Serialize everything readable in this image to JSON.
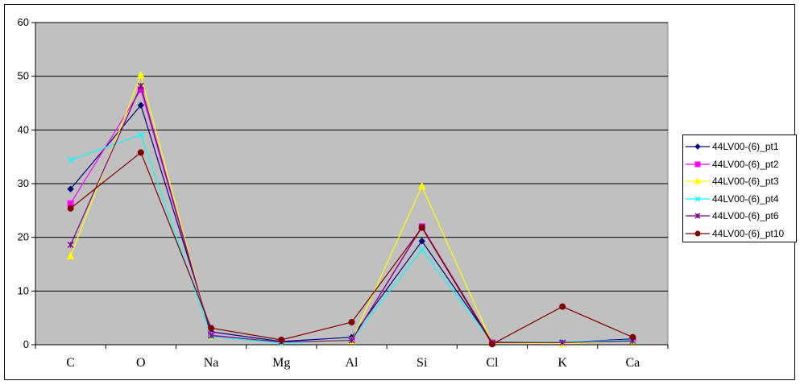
{
  "chart_data": {
    "type": "line",
    "title": "",
    "xlabel": "",
    "ylabel": "",
    "categories": [
      "C",
      "O",
      "Na",
      "Mg",
      "Al",
      "Si",
      "Cl",
      "K",
      "Ca"
    ],
    "ylim": [
      0,
      60
    ],
    "yticks": [
      "0",
      "10",
      "20",
      "30",
      "40",
      "50",
      "60"
    ],
    "grid": true,
    "plot_background": "#c0c0c0",
    "legend_position": "right",
    "series": [
      {
        "name": "44LV00-(6)_pt1",
        "color": "#000080",
        "marker": "diamond",
        "values": [
          29,
          44.6,
          2.4,
          0.6,
          1.4,
          19.3,
          0.5,
          0.4,
          1.1
        ]
      },
      {
        "name": "44LV00-(6)_pt2",
        "color": "#ff00ff",
        "marker": "square",
        "values": [
          26.3,
          47.5,
          1.8,
          0.4,
          0.8,
          22,
          0.3,
          0.3,
          0.8
        ]
      },
      {
        "name": "44LV00-(6)_pt3",
        "color": "#ffff00",
        "marker": "triangle",
        "values": [
          16.5,
          50.2,
          1.6,
          0.4,
          0.7,
          29.5,
          0.3,
          0.2,
          0.7
        ]
      },
      {
        "name": "44LV00-(6)_pt4",
        "color": "#00ffff",
        "marker": "x",
        "values": [
          34.4,
          39.1,
          1.5,
          0.3,
          0.9,
          17.7,
          0.4,
          0.5,
          0.9
        ]
      },
      {
        "name": "44LV00-(6)_pt6",
        "color": "#800080",
        "marker": "star",
        "values": [
          18.6,
          48.2,
          1.7,
          0.5,
          0.8,
          21.9,
          0.4,
          0.4,
          0.7
        ]
      },
      {
        "name": "44LV00-(6)_pt10",
        "color": "#800000",
        "marker": "circle",
        "values": [
          25.4,
          35.8,
          3.1,
          0.9,
          4.2,
          21.8,
          0.1,
          7.1,
          1.4
        ]
      }
    ]
  }
}
